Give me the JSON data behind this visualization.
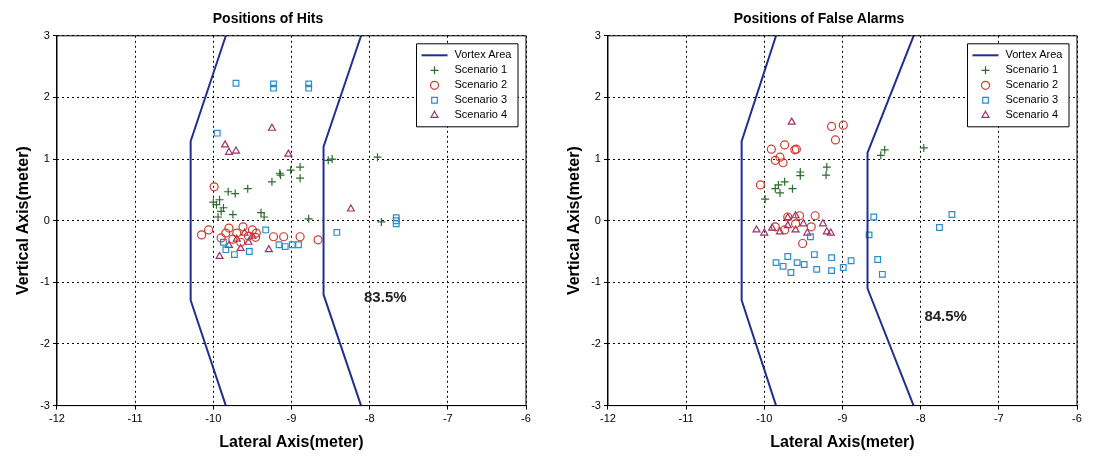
{
  "chart_data": [
    {
      "type": "scatter",
      "title": "Positions of Hits",
      "xlabel": "Lateral Axis(meter)",
      "ylabel": "Vertical Axis(meter)",
      "xlim": [
        -12,
        -6
      ],
      "ylim": [
        -3,
        3
      ],
      "xticks": [
        -12,
        -11,
        -10,
        -9,
        -8,
        -7,
        -6
      ],
      "yticks": [
        -3,
        -2,
        -1,
        0,
        1,
        2,
        3
      ],
      "grid": true,
      "legend": "top right",
      "annotations": [
        "83.5%"
      ],
      "series": [
        {
          "name": "Vortex Area",
          "type": "line",
          "marker": "none",
          "color": "#1f2f8f",
          "x": [
            -9.84,
            -10.29,
            -10.29,
            -9.84
          ],
          "values": [
            3,
            1.29,
            -1.29,
            -3
          ]
        },
        {
          "type": "line",
          "marker": "none",
          "color": "#1f2f8f",
          "x": [
            -8.11,
            -8.59,
            -8.59,
            -8.11
          ],
          "values": [
            3,
            1.2,
            -1.2,
            -3
          ]
        },
        {
          "name": "Scenario 1",
          "type": "scatter",
          "marker": "cross",
          "color": "#2e6b2e",
          "x": [
            -7.9,
            -8.53,
            -8.48,
            -8.89,
            -9.01,
            -9.15,
            -9.14,
            -8.89,
            -9.25,
            -9.56,
            -9.72,
            -9.81,
            -9.92,
            -9.96,
            -9.87,
            -9.94,
            -9.75,
            -9.39,
            -9.35,
            -8.78,
            -7.85,
            -9.9,
            -10.0
          ],
          "values": [
            1.03,
            0.98,
            1.0,
            0.87,
            0.82,
            0.77,
            0.74,
            0.69,
            0.63,
            0.52,
            0.44,
            0.47,
            0.34,
            0.26,
            0.21,
            0.06,
            0.1,
            0.13,
            0.06,
            0.03,
            -0.02,
            0.15,
            0.3
          ]
        },
        {
          "name": "Scenario 2",
          "type": "scatter",
          "marker": "circle",
          "color": "#d03a2a",
          "x": [
            -9.99,
            -10.15,
            -10.06,
            -9.23,
            -9.1,
            -8.89,
            -8.66,
            -9.46,
            -9.8,
            -9.7,
            -9.62,
            -9.55,
            -9.75,
            -9.5,
            -9.45,
            -9.65,
            -9.84,
            -9.9
          ],
          "values": [
            0.55,
            -0.23,
            -0.15,
            -0.26,
            -0.26,
            -0.26,
            -0.31,
            -0.27,
            -0.12,
            -0.2,
            -0.1,
            -0.25,
            -0.3,
            -0.15,
            -0.2,
            -0.35,
            -0.2,
            -0.28
          ]
        },
        {
          "name": "Scenario 3",
          "type": "scatter",
          "marker": "square",
          "color": "#2a8fc8",
          "x": [
            -9.71,
            -9.23,
            -9.23,
            -8.78,
            -8.78,
            -9.95,
            -8.42,
            -7.66,
            -7.66,
            -7.66,
            -9.87,
            -9.84,
            -9.73,
            -9.54,
            -9.33,
            -9.16,
            -8.99,
            -8.91,
            -9.08
          ],
          "values": [
            2.23,
            2.22,
            2.15,
            2.22,
            2.15,
            1.42,
            -0.19,
            0.05,
            0.0,
            -0.05,
            -0.35,
            -0.47,
            -0.55,
            -0.5,
            -0.15,
            -0.39,
            -0.39,
            -0.39,
            -0.42
          ]
        },
        {
          "name": "Scenario 4",
          "type": "scatter",
          "marker": "triangle",
          "color": "#a0306a",
          "x": [
            -9.25,
            -9.85,
            -9.8,
            -9.71,
            -9.04,
            -8.24,
            -9.29,
            -9.92,
            -9.8,
            -9.7,
            -9.6,
            -9.55,
            -9.65,
            -9.5
          ],
          "values": [
            1.5,
            1.23,
            1.11,
            1.13,
            1.08,
            0.19,
            -0.47,
            -0.58,
            -0.4,
            -0.3,
            -0.2,
            -0.35,
            -0.45,
            -0.25
          ]
        }
      ]
    },
    {
      "type": "scatter",
      "title": "Positions of False Alarms",
      "xlabel": "Lateral Axis(meter)",
      "ylabel": "Vertical Axis(meter)",
      "xlim": [
        -12,
        -6
      ],
      "ylim": [
        -3,
        3
      ],
      "xticks": [
        -12,
        -11,
        -10,
        -9,
        -8,
        -7,
        -6
      ],
      "yticks": [
        -3,
        -2,
        -1,
        0,
        1,
        2,
        3
      ],
      "grid": true,
      "legend": "top right",
      "annotations": [
        "84.5%"
      ],
      "series": [
        {
          "name": "Vortex Area",
          "type": "line",
          "marker": "none",
          "color": "#1f2f8f",
          "x": [
            -9.85,
            -10.29,
            -10.29,
            -9.85
          ],
          "values": [
            3,
            1.29,
            -1.29,
            -3
          ]
        },
        {
          "type": "line",
          "marker": "none",
          "color": "#1f2f8f",
          "x": [
            -8.09,
            -8.68,
            -8.68,
            -8.09
          ],
          "values": [
            3,
            1.1,
            -1.1,
            -3
          ]
        },
        {
          "name": "Scenario 1",
          "type": "scatter",
          "marker": "cross",
          "color": "#2e6b2e",
          "x": [
            -8.46,
            -8.51,
            -7.96,
            -9.54,
            -9.2,
            -9.21,
            -9.54,
            -9.82,
            -9.74,
            -9.86,
            -9.8,
            -9.64,
            -9.99
          ],
          "values": [
            1.15,
            1.06,
            1.18,
            0.79,
            0.87,
            0.74,
            0.73,
            0.58,
            0.63,
            0.52,
            0.45,
            0.52,
            0.35
          ]
        },
        {
          "name": "Scenario 2",
          "type": "scatter",
          "marker": "circle",
          "color": "#d03a2a",
          "x": [
            -9.14,
            -8.99,
            -9.09,
            -9.91,
            -9.74,
            -9.61,
            -9.59,
            -9.86,
            -9.8,
            -9.76,
            -10.05,
            -9.7,
            -9.55,
            -9.35,
            -9.51,
            -9.86,
            -9.74,
            -9.6,
            -9.4
          ],
          "values": [
            1.53,
            1.55,
            1.31,
            1.16,
            1.23,
            1.15,
            1.16,
            0.98,
            1.03,
            0.94,
            0.58,
            0.06,
            0.08,
            0.08,
            -0.37,
            -0.1,
            -0.15,
            -0.05,
            -0.1
          ]
        },
        {
          "name": "Scenario 3",
          "type": "scatter",
          "marker": "square",
          "color": "#2a8fc8",
          "x": [
            -8.6,
            -8.66,
            -8.55,
            -8.49,
            -7.76,
            -7.6,
            -9.85,
            -9.7,
            -9.66,
            -9.41,
            -9.36,
            -9.33,
            -9.14,
            -9.14,
            -8.99,
            -8.89,
            -9.76,
            -9.58,
            -9.49
          ],
          "values": [
            0.06,
            -0.23,
            -0.63,
            -0.87,
            -0.11,
            0.1,
            -0.68,
            -0.58,
            -0.84,
            -0.26,
            -0.55,
            -0.79,
            -0.6,
            -0.81,
            -0.76,
            -0.65,
            -0.74,
            -0.68,
            -0.71
          ]
        },
        {
          "name": "Scenario 4",
          "type": "scatter",
          "marker": "triangle",
          "color": "#a0306a",
          "x": [
            -9.65,
            -10.1,
            -10.0,
            -9.9,
            -9.8,
            -9.7,
            -9.6,
            -9.5,
            -9.45,
            -9.25,
            -9.2,
            -9.15,
            -9.7,
            -9.6
          ],
          "values": [
            1.6,
            -0.15,
            -0.2,
            -0.12,
            -0.18,
            -0.08,
            -0.15,
            -0.05,
            -0.2,
            -0.05,
            -0.18,
            -0.2,
            0.05,
            0.08
          ]
        }
      ]
    }
  ]
}
